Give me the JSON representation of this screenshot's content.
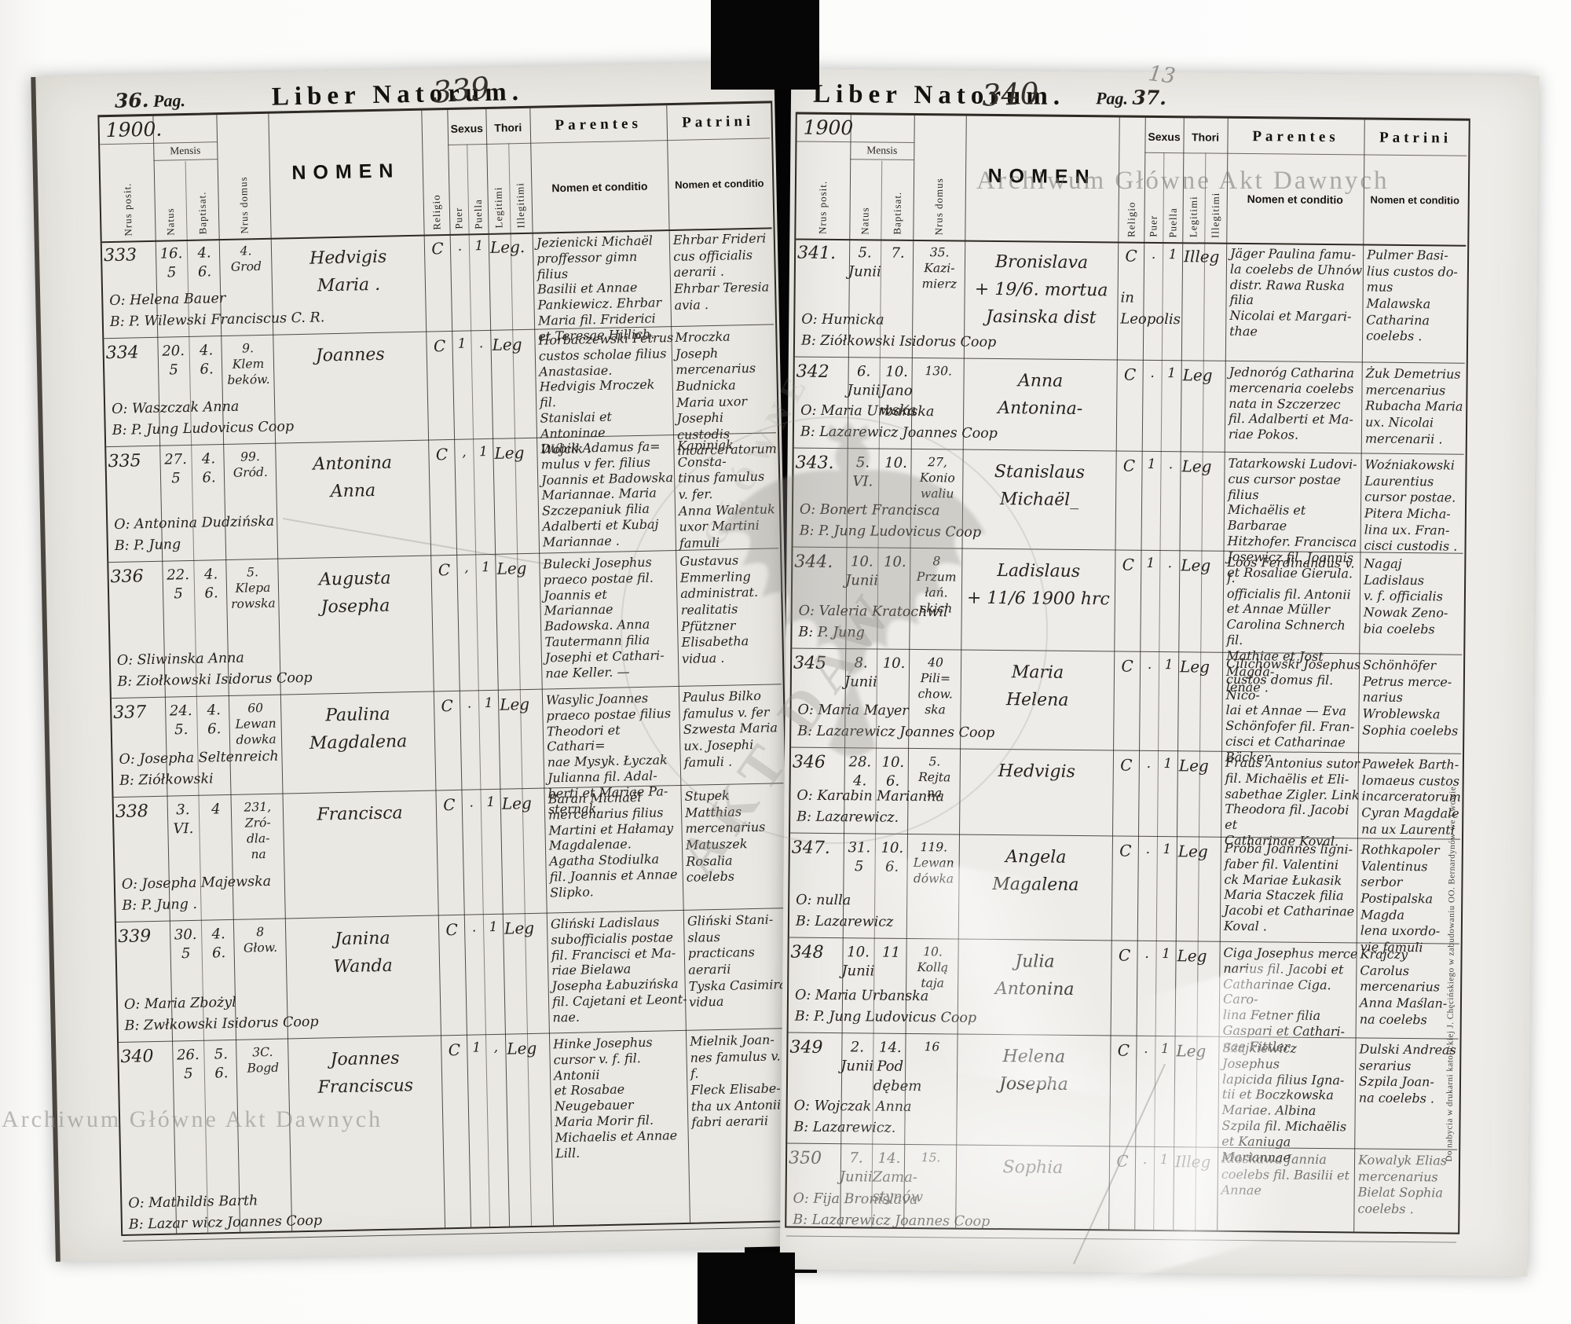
{
  "labels": {
    "title": "Liber Natorum.",
    "pag": "Pag.",
    "mensis": "Mensis",
    "nrus_posit": "Nrus posit.",
    "natus": "Natus",
    "baptisat": "Baptisat.",
    "nrus_domus": "Nrus domus",
    "nomen": "NOMEN",
    "religio": "Religio",
    "sexus": "Sexus",
    "puer": "Puer",
    "puella": "Puella",
    "thori": "Thori",
    "legitimi": "Legitimi",
    "illegitimi": "Illegitimi",
    "parentes": "Parentes",
    "patrini": "Patrini",
    "nomen_et_conditio": "Nomen et conditio"
  },
  "watermarks": {
    "archive_text": "Archiwum Główne Akt Dawnych",
    "ghost_word_1": "GŁÓWNE",
    "ghost_word_2": "AKT DAW",
    "edge_note": "Do nabycia w drukarni katolickiej J. Chęcińskiego w zabudowaniu OO. Bernardynów we Lwowie.",
    "corner_mark": "13"
  },
  "colors": {
    "paper": "#e9e8e3",
    "ink": "#26231d",
    "rule": "#2e2a24",
    "tape": "#060606",
    "watermark": "#7a7874"
  },
  "pages": [
    {
      "side": "left",
      "pag_number": "36.",
      "folio": "339",
      "year": "1900.",
      "rows": [
        {
          "nr": "333",
          "d1": "16.\n5",
          "d2": "4.\n6.",
          "domus": "4.\nGrod",
          "nomen": "Hedvigis\nMaria .",
          "extra": "",
          "o": "O: Helena Bauer",
          "b": "B: P. Wilewski Franciscus C. R.",
          "religio": "C",
          "puer": ".",
          "puella": "1",
          "thori": "Leg.",
          "parentes": "Jezienicki Michaël\nproffessor gimn filius\nBasilii et Annae\nPankiewicz. Ehrbar\nMaria fil. Friderici\net Teresae Hillich.",
          "patrini": "Ehrbar Frideri\ncus officialis\naerarii .\nEhrbar Teresia\navia ."
        },
        {
          "nr": "334",
          "d1": "20.\n5",
          "d2": "4.\n6.",
          "domus": "9.\nKlem\nbeków.",
          "nomen": "Joannes",
          "extra": "",
          "o": "O: Waszczak Anna",
          "b": "B: P. Jung Ludovicus Coop",
          "religio": "C",
          "puer": "1",
          "puella": ".",
          "thori": "Leg",
          "parentes": "Horbaczewski Petrus\ncustos scholae filius\nAnastasiae.\nHedvigis Mroczek fil.\nStanislai et Antoninae\nWójcik .",
          "patrini": "Mroczka Joseph\nmercenarius\nBudnicka\nMaria uxor\nJosephi custodis\nincarceratorum"
        },
        {
          "nr": "335",
          "d1": "27.\n5",
          "d2": "4.\n6.",
          "domus": "99.\nGród.",
          "nomen": "Antonina\nAnna",
          "extra": "",
          "o": "O: Antonina Dudzińska",
          "b": "B: P. Jung",
          "religio": "C",
          "puer": ",",
          "puella": "1",
          "thori": "Leg",
          "parentes": "Dubik Adamus fa=\nmulus v fer. filius\nJoannis et Badowska\nMariannae. Maria\nSzczepaniuk filia\nAdalberti et Kubaj\nMariannae .",
          "patrini": "Kapiniak Consta-\ntinus famulus\nv. fer.\nAnna Walentuk\nuxor Martini\nfamuli"
        },
        {
          "nr": "336",
          "d1": "22.\n5",
          "d2": "4.\n6.",
          "domus": "5.\nKlepa\nrowska",
          "nomen": "Augusta\nJosepha",
          "extra": "",
          "o": "O: Sliwinska Anna",
          "b": "B: Ziołkowski Isidorus Coop",
          "religio": "C",
          "puer": ",",
          "puella": "1",
          "thori": "Leg",
          "parentes": "Bulecki Josephus\npraeco postae fil.\nJoannis et Mariannae\nBadowska. Anna\nTautermann filia\nJosephi et Cathari-\nnae Keller. —",
          "patrini": "Gustavus\nEmmerling\nadministrat.\nrealitatis\nPfützner\nElisabetha\nvidua ."
        },
        {
          "nr": "337",
          "d1": "24.\n5.",
          "d2": "4.\n6.",
          "domus": "60\nLewan\ndowka",
          "nomen": "Paulina\nMagdalena",
          "extra": "",
          "o": "O: Josepha Seltenreich",
          "b": "B: Ziółkowski",
          "religio": "C",
          "puer": ".",
          "puella": "1",
          "thori": "Leg",
          "parentes": "Wasylic Joannes\npraeco postae filius\nTheodori et Cathari=\nnae Mysyk. Łyczak\nJulianna fil. Adal-\nberti et Mariae Pa-\nsternak.",
          "patrini": "Paulus Bilko\nfamulus v. fer\nSzwesta Maria\nux. Josephi\nfamuli ."
        },
        {
          "nr": "338",
          "d1": "3.\nVI.",
          "d2": "4",
          "domus": "231,\nZró-\ndla-\nna",
          "nomen": "Francisca",
          "extra": "",
          "o": "O: Josepha Majewska",
          "b": "B: P. Jung .",
          "religio": "C",
          "puer": ".",
          "puella": "1",
          "thori": "Leg",
          "parentes": "Baran Michaël\nmercenarius filius\nMartini et Hałamay\nMagdalenae.\nAgatha Stodiulka\nfil. Joannis et Annae\nSlipko.",
          "patrini": "Stupek Matthias\nmercenarius\nMatuszek\nRosalia\ncoelebs"
        },
        {
          "nr": "339",
          "d1": "30.\n5",
          "d2": "4.\n6.",
          "domus": "8\nGłow.",
          "nomen": "Janina\nWanda",
          "extra": "",
          "o": "O: Maria Zbożyl",
          "b": "B: Zwłkowski Isidorus Coop",
          "religio": "C",
          "puer": ".",
          "puella": "1",
          "thori": "Leg",
          "parentes": "Gliński Ladislaus\nsubofficialis postae\nfil. Francisci et Ma-\nriae Bielawa\nJosepha Łabuzińska\nfil. Cajetani et Leont-\nnae.",
          "patrini": "Gliński Stani-\nslaus practicans\naerarii\nTyska Casimira\nvidua"
        },
        {
          "nr": "340",
          "d1": "26.\n5",
          "d2": "5.\n6.",
          "domus": "3C.\nBogd",
          "nomen": "Joannes\nFranciscus",
          "extra": "",
          "o": "O: Mathildis Barth",
          "b": "B: Lazar wicz Joannes Coop",
          "religio": "C",
          "puer": "1",
          "puella": ",",
          "thori": "Leg",
          "parentes": "Hinke Josephus\ncursor v. f. fil. Antonii\net Rosabae Neugebauer\nMaria Morir fil.\nMichaelis et Annae\nLill.",
          "patrini": "Mielnik Joan-\nnes famulus v. f.\nFleck Elisabe-\ntha ux Antonii\nfabri aerarii"
        }
      ]
    },
    {
      "side": "right",
      "pag_number": "37.",
      "folio": "340",
      "year": "1900",
      "rows": [
        {
          "nr": "341.",
          "d1": "5.\nJunii",
          "d2": "7.",
          "domus": "35.\nKazi-\nmierz",
          "nomen": "Bronislava\n+ 19/6. mortua\nJasinska dist",
          "extra": "in\nLeopolis",
          "o": "O: Humicka",
          "b": "B: Ziółkowski Isidorus Coop",
          "religio": "C",
          "puer": ".",
          "puella": "1",
          "thori": "Illeg",
          "parentes": "Jäger Paulina famu-\nla coelebs de Uhnów\ndistr. Rawa Ruska filia\nNicolai et Margari-\nthae",
          "patrini": "Pulmer Basi-\nlius custos do-\nmus\nMalawska\nCatharina\ncoelebs ."
        },
        {
          "nr": "342",
          "d1": "6.\nJunii",
          "d2": "10.\nJano\nwska",
          "domus": "130.",
          "nomen": "Anna\nAntonina-",
          "extra": "",
          "o": "O: Maria Urbańska",
          "b": "B: Lazarewicz Joannes Coop",
          "religio": "C",
          "puer": ".",
          "puella": "1",
          "thori": "Leg",
          "parentes": "Jednoróg Catharina\nmercenaria coelebs\nnata in Szczerzec\nfil. Adalberti et Ma-\nriae Pokos.",
          "patrini": "Żuk Demetrius\nmercenarius\nRubacha Maria\nux. Nicolai\nmercenarii ."
        },
        {
          "nr": "343.",
          "d1": "5.\nVI.",
          "d2": "10.",
          "domus": "27,\nKonio\nwaliu",
          "nomen": "Stanislaus\nMichaël_",
          "extra": "",
          "o": "O: Bonert Francisca",
          "b": "B: P. Jung Ludovicus Coop",
          "religio": "C",
          "puer": "1",
          "puella": ".",
          "thori": "Leg",
          "parentes": "Tatarkowski Ludovi-\ncus cursor postae filius\nMichaëlis et Barbarae\nHitzhofer. Francisca\nJosewicz fil. Joannis\net Rosaliae Gierula.",
          "patrini": "Woźniakowski\nLaurentius\ncursor postae.\nPitera Micha-\nlina ux. Fran-\ncisci custodis ."
        },
        {
          "nr": "344.",
          "d1": "10.\nJunii",
          "d2": "10.",
          "domus": "8\nPrzum\nłań.\nskich",
          "nomen": "Ladislaus\n+ 11/6 1900 hrc",
          "extra": "",
          "o": "O: Valeria Kratochwil",
          "b": "B: P. Jung",
          "religio": "C",
          "puer": "1",
          "puella": ".",
          "thori": "Leg",
          "parentes": "Loos Ferdinandus v. f.\nofficialis fil. Antonii\net Annae Müller\nCarolina Schnerch fil.\nMathiae et Jost Magda-\nlenae .",
          "patrini": "Nagaj Ladislaus\nv. f. officialis\nNowak Zeno-\nbia coelebs"
        },
        {
          "nr": "345",
          "d1": "8.\nJunii",
          "d2": "10.",
          "domus": "40\nPili=\nchow.\nska",
          "nomen": "Maria\nHelena",
          "extra": "",
          "o": "O: Maria Mayer",
          "b": "B: Lazarewicz Joannes Coop",
          "religio": "C",
          "puer": ".",
          "puella": "1",
          "thori": "Leg",
          "parentes": "Cilichowski Josephus\ncustos domus fil. Nico-\nlai et Annae — Eva\nSchönfofer fil. Fran-\ncisci et Catharinae\nBäcker",
          "patrini": "Schönhöfer\nPetrus merce-\nnarius\nWroblewska\nSophia coelebs"
        },
        {
          "nr": "346",
          "d1": "28.\n4.",
          "d2": "10.\n6.",
          "domus": "5.\nRejta\nna",
          "nomen": "Hedvigis",
          "extra": "",
          "o": "O: Karabin Marianna",
          "b": "B: Lazarewicz.",
          "religio": "C",
          "puer": ".",
          "puella": "1",
          "thori": "Leg",
          "parentes": "Fraus Antonius sutor\nfil. Michaëlis et Eli-\nsabethae Zigler. Link\nTheodora fil. Jacobi et\nCatharinae Koval.",
          "patrini": "Pawełek Barth-\nlomaeus custos\nincarceratorum\nCyran Magdale\nna ux Laurenti"
        },
        {
          "nr": "347.",
          "d1": "31.\n5",
          "d2": "10.\n6.",
          "domus": "119.\nLewan\ndówka",
          "nomen": "Angela\nMagalena",
          "extra": "",
          "o": "O: nulla",
          "b": "B: Lazarewicz",
          "religio": "C",
          "puer": ".",
          "puella": "1",
          "thori": "Leg",
          "parentes": "Proba Joannes ligni-\nfaber fil. Valentini\nck Mariae Łukasik\nMaria Staczek filia\nJacobi et Catharinae\nKoval .",
          "patrini": "Rothkapoler\nValentinus serbor\nPostipalska Magda\nlena uxordo-\nvie famuli"
        },
        {
          "nr": "348",
          "d1": "10.\nJunii",
          "d2": "11",
          "domus": "10.\nKollą\ntaja",
          "nomen": "Julia\nAntonina",
          "extra": "",
          "o": "O: Maria Urbanska",
          "b": "B: P. Jung Ludovicus Coop",
          "religio": "C",
          "puer": ".",
          "puella": "1",
          "thori": "Leg",
          "parentes": "Ciga Josephus merce\nnarius fil. Jacobi et\nCatharinae Ciga. Caro-\nlina Fetner filia\nGaspari et Cathari-\nnae Fittler",
          "patrini": "Krajczy Carolus\nmercenarius\nAnna Maślan-\nna coelebs"
        },
        {
          "nr": "349",
          "d1": "2.\nJunii",
          "d2": "14.\nPod\ndębem",
          "domus": "16",
          "nomen": "Helena\nJosepha",
          "extra": "",
          "o": "O: Wojczak Anna",
          "b": "B: Lazarewicz.",
          "religio": "C",
          "puer": ".",
          "puella": "1",
          "thori": "Leg",
          "parentes": "Szajkiewicz Josephus\nlapicida filius Igna-\ntii et Boczkowska\nMariae. Albina\nSzpila fil. Michaëlis\net Kaniuga Mariannae",
          "patrini": "Dulski Andreas\nserarius\nSzpila Joan-\nna coelebs ."
        },
        {
          "nr": "350",
          "d1": "7.\nJunii",
          "d2": "14.\nZama-\nstynów",
          "domus": "15.",
          "nomen": "Sophia",
          "extra": "",
          "o": "O: Fija Bronislava",
          "b": "B: Lazarewicz Joannes Coop",
          "religio": "C",
          "puer": ".",
          "puella": "1",
          "thori": "Illeg",
          "parentes": "Kłoskawa Jannia\ncoelebs fil. Basilii et\nAnnae",
          "patrini": "Kowalyk Elias\nmercenarius\nBielat Sophia\ncoelebs ."
        }
      ]
    }
  ]
}
